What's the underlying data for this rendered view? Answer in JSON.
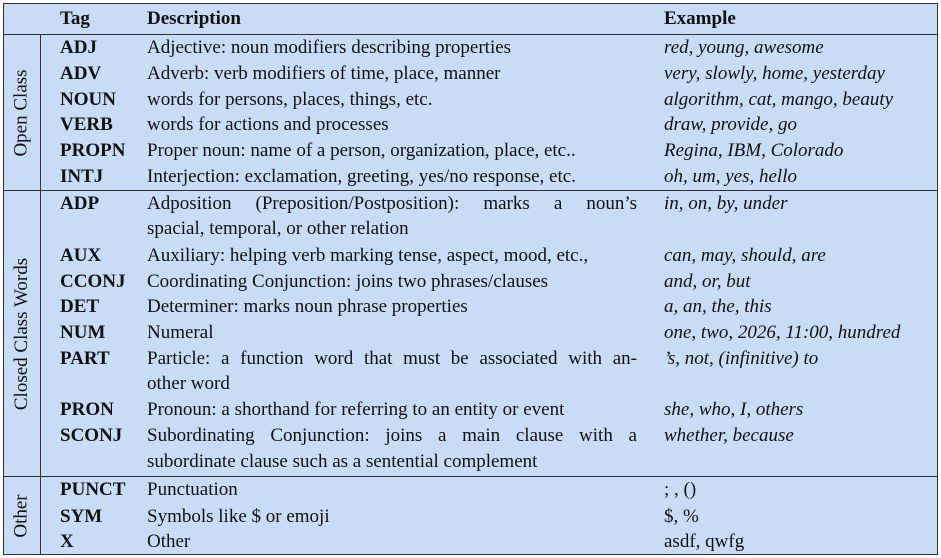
{
  "header": {
    "tag": "Tag",
    "description": "Description",
    "example": "Example"
  },
  "groups": {
    "open": "Open Class",
    "closed": "Closed Class Words",
    "other": "Other"
  },
  "rows": [
    {
      "tag": "ADJ",
      "desc": "Adjective: noun modifiers describing properties",
      "example": "red, young, awesome"
    },
    {
      "tag": "ADV",
      "desc": "Adverb: verb modifiers of time, place, manner",
      "example": "very, slowly, home, yesterday"
    },
    {
      "tag": "NOUN",
      "desc": "words for persons, places, things, etc.",
      "example": "algorithm, cat, mango, beauty"
    },
    {
      "tag": "VERB",
      "desc": "words for actions and processes",
      "example": "draw, provide, go"
    },
    {
      "tag": "PROPN",
      "desc": "Proper noun: name of a person, organization, place, etc..",
      "example": "Regina, IBM, Colorado"
    },
    {
      "tag": "INTJ",
      "desc": "Interjection: exclamation, greeting, yes/no response, etc.",
      "example": "oh, um, yes, hello"
    },
    {
      "tag": "ADP",
      "desc1": "Adposition (Preposition/Postposition): marks a noun’s",
      "desc2": "spacial, temporal, or other relation",
      "example": "in, on, by, under"
    },
    {
      "tag": "AUX",
      "desc": "Auxiliary: helping verb marking tense, aspect, mood, etc.,",
      "example": "can, may, should, are"
    },
    {
      "tag": "CCONJ",
      "desc": "Coordinating Conjunction: joins two phrases/clauses",
      "example": "and, or, but"
    },
    {
      "tag": "DET",
      "desc": "Determiner: marks noun phrase properties",
      "example": "a, an, the, this"
    },
    {
      "tag": "NUM",
      "desc": "Numeral",
      "example": "one, two, 2026, 11:00, hundred"
    },
    {
      "tag": "PART",
      "desc1": "Particle: a function word that must be associated with an-",
      "desc2": "other word",
      "example": "’s, not, (infinitive) to"
    },
    {
      "tag": "PRON",
      "desc": "Pronoun: a shorthand for referring to an entity or event",
      "example": "she, who, I, others"
    },
    {
      "tag": "SCONJ",
      "desc1": "Subordinating Conjunction: joins a main clause with a",
      "desc2": "subordinate clause such as a sentential complement",
      "example": "whether, because"
    },
    {
      "tag": "PUNCT",
      "desc": "Punctuation",
      "example": "; , ()"
    },
    {
      "tag": "SYM",
      "desc": "Symbols like $ or emoji",
      "example": "$, %"
    },
    {
      "tag": "X",
      "desc": "Other",
      "example": "asdf, qwfg"
    }
  ]
}
